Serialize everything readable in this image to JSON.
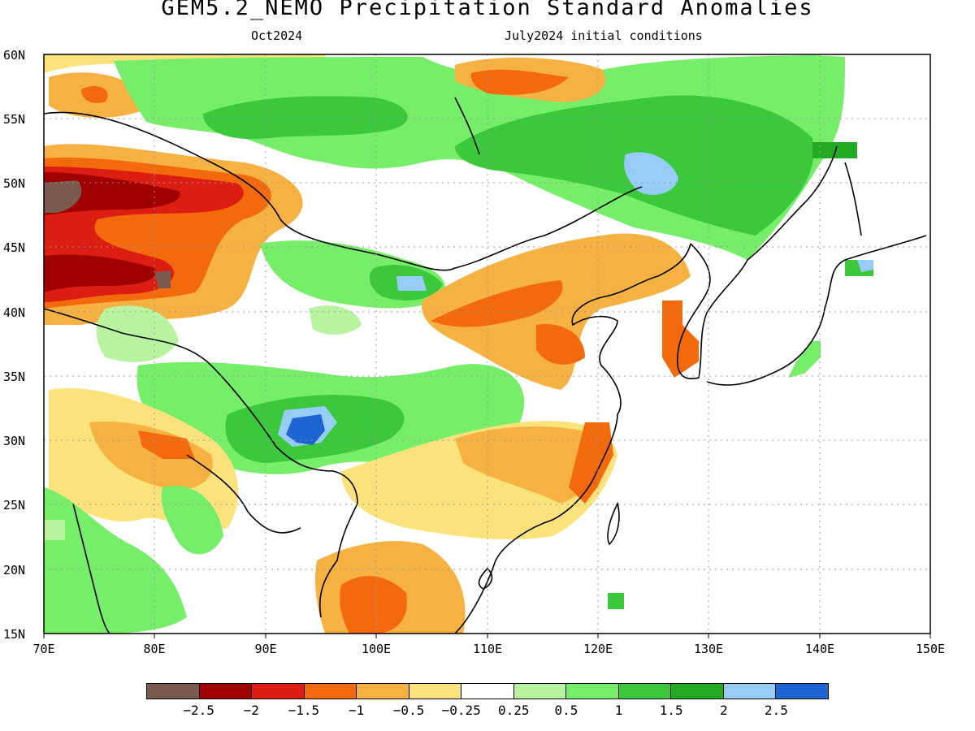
{
  "title": "GEM5.2_NEMO Precipitation Standard Anomalies",
  "subtitle_left": "Oct2024",
  "subtitle_right": "July2024 initial conditions",
  "map": {
    "lon_range": [
      70,
      150
    ],
    "lat_range": [
      15,
      60
    ],
    "lat_labels": [
      "60N",
      "55N",
      "50N",
      "45N",
      "40N",
      "35N",
      "30N",
      "25N",
      "20N",
      "15N"
    ],
    "lon_labels": [
      "70E",
      "80E",
      "90E",
      "100E",
      "110E",
      "120E",
      "130E",
      "140E",
      "150E"
    ],
    "gridlines": "dotted"
  },
  "colorbar": {
    "colors": [
      "#7a5a4f",
      "#a00000",
      "#dc1e12",
      "#f36a0c",
      "#f5b242",
      "#fbe27a",
      "#ffffff",
      "#b8f3a0",
      "#76ee6a",
      "#3cc83c",
      "#22aa22",
      "#96ccf5",
      "#1e64d2"
    ],
    "labels": [
      "−2.5",
      "−2",
      "−1.5",
      "−1",
      "−0.5",
      "−0.25",
      "0.25",
      "0.5",
      "1",
      "1.5",
      "2",
      "2.5"
    ]
  },
  "anomaly_regions": [
    {
      "lon": 72,
      "lat": 49,
      "level": "-3"
    },
    {
      "lon": 80,
      "lat": 49.5,
      "level": "-2.5"
    },
    {
      "lon": 78,
      "lat": 42.5,
      "level": "-2"
    },
    {
      "lon": 102,
      "lat": 31,
      "level": "2"
    },
    {
      "lon": 125,
      "lat": 50,
      "level": "2"
    }
  ]
}
